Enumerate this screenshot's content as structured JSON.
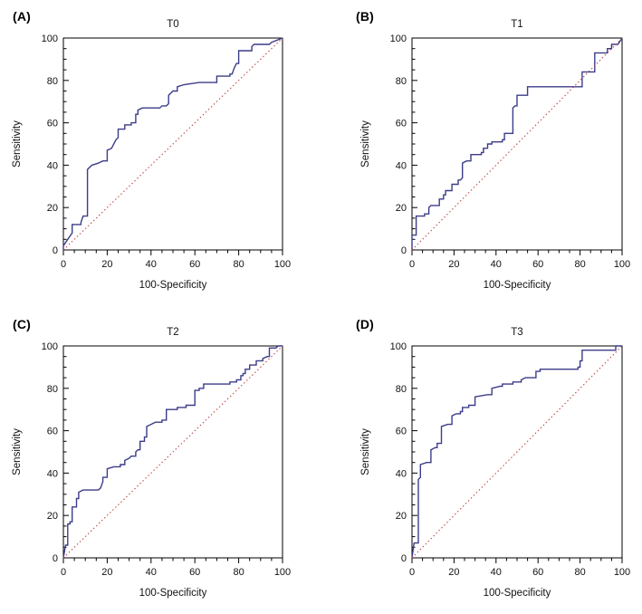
{
  "figure": {
    "background": "#ffffff",
    "description": "Four ROC curve panels"
  },
  "colors": {
    "curve": "#3c3c8a",
    "diagonal": "#bf4040",
    "axis": "#000000",
    "text": "#111111"
  },
  "chart_data": [
    {
      "type": "line",
      "panel_label": "(A)",
      "title": "T0",
      "xlabel": "100-Specificity",
      "ylabel": "Sensitivity",
      "xlim": [
        0,
        100
      ],
      "ylim": [
        0,
        100
      ],
      "x_ticks": [
        0,
        20,
        40,
        60,
        80,
        100
      ],
      "y_ticks": [
        0,
        20,
        40,
        60,
        80,
        100
      ],
      "minor_tick_step": 5,
      "grid": false,
      "legend": "none",
      "series": [
        {
          "name": "ROC curve T0",
          "style": "solid",
          "color": "#3c3c8a",
          "points": [
            [
              0,
              0
            ],
            [
              0,
              2
            ],
            [
              2,
              5
            ],
            [
              4,
              8
            ],
            [
              4,
              12
            ],
            [
              8,
              12
            ],
            [
              8,
              13
            ],
            [
              9,
              16
            ],
            [
              11,
              16
            ],
            [
              11,
              38
            ],
            [
              13,
              40
            ],
            [
              16,
              41
            ],
            [
              18,
              42
            ],
            [
              20,
              42
            ],
            [
              20,
              47
            ],
            [
              22,
              48
            ],
            [
              24,
              52
            ],
            [
              25,
              53
            ],
            [
              25,
              57
            ],
            [
              28,
              57
            ],
            [
              28,
              59
            ],
            [
              31,
              59
            ],
            [
              31,
              60
            ],
            [
              33,
              60
            ],
            [
              33,
              64
            ],
            [
              34,
              64
            ],
            [
              34,
              66
            ],
            [
              36,
              67
            ],
            [
              44,
              67
            ],
            [
              45,
              68
            ],
            [
              47,
              68
            ],
            [
              48,
              69
            ],
            [
              48,
              73
            ],
            [
              50,
              75
            ],
            [
              52,
              75
            ],
            [
              52,
              77
            ],
            [
              55,
              78
            ],
            [
              62,
              79
            ],
            [
              70,
              79
            ],
            [
              70,
              82
            ],
            [
              76,
              82
            ],
            [
              76,
              83
            ],
            [
              77,
              83
            ],
            [
              78,
              86
            ],
            [
              79,
              88
            ],
            [
              80,
              88
            ],
            [
              80,
              94
            ],
            [
              86,
              94
            ],
            [
              86,
              96
            ],
            [
              87,
              97
            ],
            [
              94,
              97
            ],
            [
              95,
              98
            ],
            [
              100,
              100
            ]
          ]
        },
        {
          "name": "Reference diagonal",
          "style": "dotted",
          "color": "#bf4040",
          "points": [
            [
              0,
              0
            ],
            [
              100,
              100
            ]
          ]
        }
      ]
    },
    {
      "type": "line",
      "panel_label": "(B)",
      "title": "T1",
      "xlabel": "100-Specificity",
      "ylabel": "Sensitivity",
      "xlim": [
        0,
        100
      ],
      "ylim": [
        0,
        100
      ],
      "x_ticks": [
        0,
        20,
        40,
        60,
        80,
        100
      ],
      "y_ticks": [
        0,
        20,
        40,
        60,
        80,
        100
      ],
      "minor_tick_step": 5,
      "grid": false,
      "legend": "none",
      "series": [
        {
          "name": "ROC curve T1",
          "style": "solid",
          "color": "#3c3c8a",
          "points": [
            [
              0,
              0
            ],
            [
              0,
              7
            ],
            [
              2,
              7
            ],
            [
              2,
              16
            ],
            [
              6,
              16
            ],
            [
              6,
              17
            ],
            [
              8,
              17
            ],
            [
              8,
              20
            ],
            [
              9,
              21
            ],
            [
              13,
              21
            ],
            [
              13,
              24
            ],
            [
              15,
              24
            ],
            [
              15,
              26
            ],
            [
              16,
              26
            ],
            [
              16,
              28
            ],
            [
              19,
              28
            ],
            [
              19,
              31
            ],
            [
              22,
              31
            ],
            [
              22,
              33
            ],
            [
              23,
              33
            ],
            [
              24,
              34
            ],
            [
              24,
              41
            ],
            [
              26,
              42
            ],
            [
              28,
              42
            ],
            [
              28,
              45
            ],
            [
              33,
              45
            ],
            [
              33,
              46
            ],
            [
              34,
              46
            ],
            [
              34,
              48
            ],
            [
              36,
              48
            ],
            [
              36,
              50
            ],
            [
              38,
              50
            ],
            [
              38,
              51
            ],
            [
              43,
              51
            ],
            [
              43,
              52
            ],
            [
              44,
              52
            ],
            [
              44,
              55
            ],
            [
              48,
              55
            ],
            [
              48,
              67
            ],
            [
              49,
              68
            ],
            [
              50,
              68
            ],
            [
              50,
              73
            ],
            [
              55,
              73
            ],
            [
              55,
              77
            ],
            [
              57,
              77
            ],
            [
              81,
              77
            ],
            [
              81,
              84
            ],
            [
              87,
              84
            ],
            [
              87,
              93
            ],
            [
              93,
              93
            ],
            [
              93,
              95
            ],
            [
              95,
              95
            ],
            [
              95,
              97
            ],
            [
              98,
              97
            ],
            [
              100,
              100
            ]
          ]
        },
        {
          "name": "Reference diagonal",
          "style": "dotted",
          "color": "#bf4040",
          "points": [
            [
              0,
              0
            ],
            [
              100,
              100
            ]
          ]
        }
      ]
    },
    {
      "type": "line",
      "panel_label": "(C)",
      "title": "T2",
      "xlabel": "100-Specificity",
      "ylabel": "Sensitivity",
      "xlim": [
        0,
        100
      ],
      "ylim": [
        0,
        100
      ],
      "x_ticks": [
        0,
        20,
        40,
        60,
        80,
        100
      ],
      "y_ticks": [
        0,
        20,
        40,
        60,
        80,
        100
      ],
      "minor_tick_step": 5,
      "grid": false,
      "legend": "none",
      "series": [
        {
          "name": "ROC curve T2",
          "style": "solid",
          "color": "#3c3c8a",
          "points": [
            [
              0,
              0
            ],
            [
              1,
              6
            ],
            [
              2,
              6
            ],
            [
              2,
              16
            ],
            [
              3,
              16
            ],
            [
              3,
              17
            ],
            [
              4,
              17
            ],
            [
              4,
              24
            ],
            [
              6,
              24
            ],
            [
              6,
              28
            ],
            [
              7,
              28
            ],
            [
              7,
              31
            ],
            [
              9,
              32
            ],
            [
              16,
              32
            ],
            [
              17,
              33
            ],
            [
              18,
              36
            ],
            [
              18,
              38
            ],
            [
              20,
              38
            ],
            [
              20,
              42
            ],
            [
              23,
              43
            ],
            [
              26,
              43
            ],
            [
              26,
              44
            ],
            [
              28,
              44
            ],
            [
              28,
              46
            ],
            [
              30,
              47
            ],
            [
              31,
              48
            ],
            [
              33,
              48
            ],
            [
              33,
              50
            ],
            [
              34,
              51
            ],
            [
              35,
              51
            ],
            [
              35,
              55
            ],
            [
              37,
              55
            ],
            [
              37,
              57
            ],
            [
              38,
              57
            ],
            [
              38,
              62
            ],
            [
              40,
              63
            ],
            [
              42,
              64
            ],
            [
              45,
              64
            ],
            [
              45,
              65
            ],
            [
              47,
              65
            ],
            [
              47,
              70
            ],
            [
              52,
              70
            ],
            [
              52,
              71
            ],
            [
              56,
              71
            ],
            [
              56,
              72
            ],
            [
              60,
              72
            ],
            [
              60,
              79
            ],
            [
              62,
              79
            ],
            [
              62,
              80
            ],
            [
              64,
              80
            ],
            [
              64,
              82
            ],
            [
              76,
              82
            ],
            [
              76,
              83
            ],
            [
              79,
              83
            ],
            [
              79,
              84
            ],
            [
              81,
              84
            ],
            [
              81,
              86
            ],
            [
              82,
              86
            ],
            [
              82,
              87
            ],
            [
              83,
              87
            ],
            [
              83,
              89
            ],
            [
              85,
              89
            ],
            [
              85,
              91
            ],
            [
              88,
              91
            ],
            [
              88,
              93
            ],
            [
              91,
              93
            ],
            [
              91,
              94
            ],
            [
              93,
              95
            ],
            [
              94,
              95
            ],
            [
              94,
              99
            ],
            [
              97,
              99
            ],
            [
              98,
              100
            ],
            [
              100,
              100
            ]
          ]
        },
        {
          "name": "Reference diagonal",
          "style": "dotted",
          "color": "#bf4040",
          "points": [
            [
              0,
              0
            ],
            [
              100,
              100
            ]
          ]
        }
      ]
    },
    {
      "type": "line",
      "panel_label": "(D)",
      "title": "T3",
      "xlabel": "100-Specificity",
      "ylabel": "Sensitivity",
      "xlim": [
        0,
        100
      ],
      "ylim": [
        0,
        100
      ],
      "x_ticks": [
        0,
        20,
        40,
        60,
        80,
        100
      ],
      "y_ticks": [
        0,
        20,
        40,
        60,
        80,
        100
      ],
      "minor_tick_step": 5,
      "grid": false,
      "legend": "none",
      "series": [
        {
          "name": "ROC curve T3",
          "style": "solid",
          "color": "#3c3c8a",
          "points": [
            [
              0,
              0
            ],
            [
              1,
              7
            ],
            [
              3,
              7
            ],
            [
              3,
              37
            ],
            [
              4,
              38
            ],
            [
              4,
              44
            ],
            [
              7,
              45
            ],
            [
              9,
              45
            ],
            [
              9,
              51
            ],
            [
              11,
              52
            ],
            [
              12,
              52
            ],
            [
              12,
              54
            ],
            [
              14,
              54
            ],
            [
              14,
              62
            ],
            [
              17,
              63
            ],
            [
              19,
              63
            ],
            [
              19,
              67
            ],
            [
              21,
              68
            ],
            [
              23,
              68
            ],
            [
              23,
              69
            ],
            [
              24,
              69
            ],
            [
              24,
              71
            ],
            [
              27,
              71
            ],
            [
              27,
              72
            ],
            [
              30,
              72
            ],
            [
              30,
              76
            ],
            [
              36,
              77
            ],
            [
              38,
              77
            ],
            [
              38,
              80
            ],
            [
              42,
              81
            ],
            [
              43,
              81
            ],
            [
              43,
              82
            ],
            [
              48,
              82
            ],
            [
              48,
              83
            ],
            [
              52,
              83
            ],
            [
              52,
              84
            ],
            [
              54,
              85
            ],
            [
              59,
              85
            ],
            [
              59,
              88
            ],
            [
              61,
              88
            ],
            [
              61,
              89
            ],
            [
              63,
              89
            ],
            [
              79,
              89
            ],
            [
              79,
              90
            ],
            [
              80,
              90
            ],
            [
              80,
              93
            ],
            [
              81,
              93
            ],
            [
              81,
              98
            ],
            [
              83,
              98
            ],
            [
              97,
              98
            ],
            [
              97,
              100
            ],
            [
              100,
              100
            ]
          ]
        },
        {
          "name": "Reference diagonal",
          "style": "dotted",
          "color": "#bf4040",
          "points": [
            [
              0,
              0
            ],
            [
              100,
              100
            ]
          ]
        }
      ]
    }
  ]
}
